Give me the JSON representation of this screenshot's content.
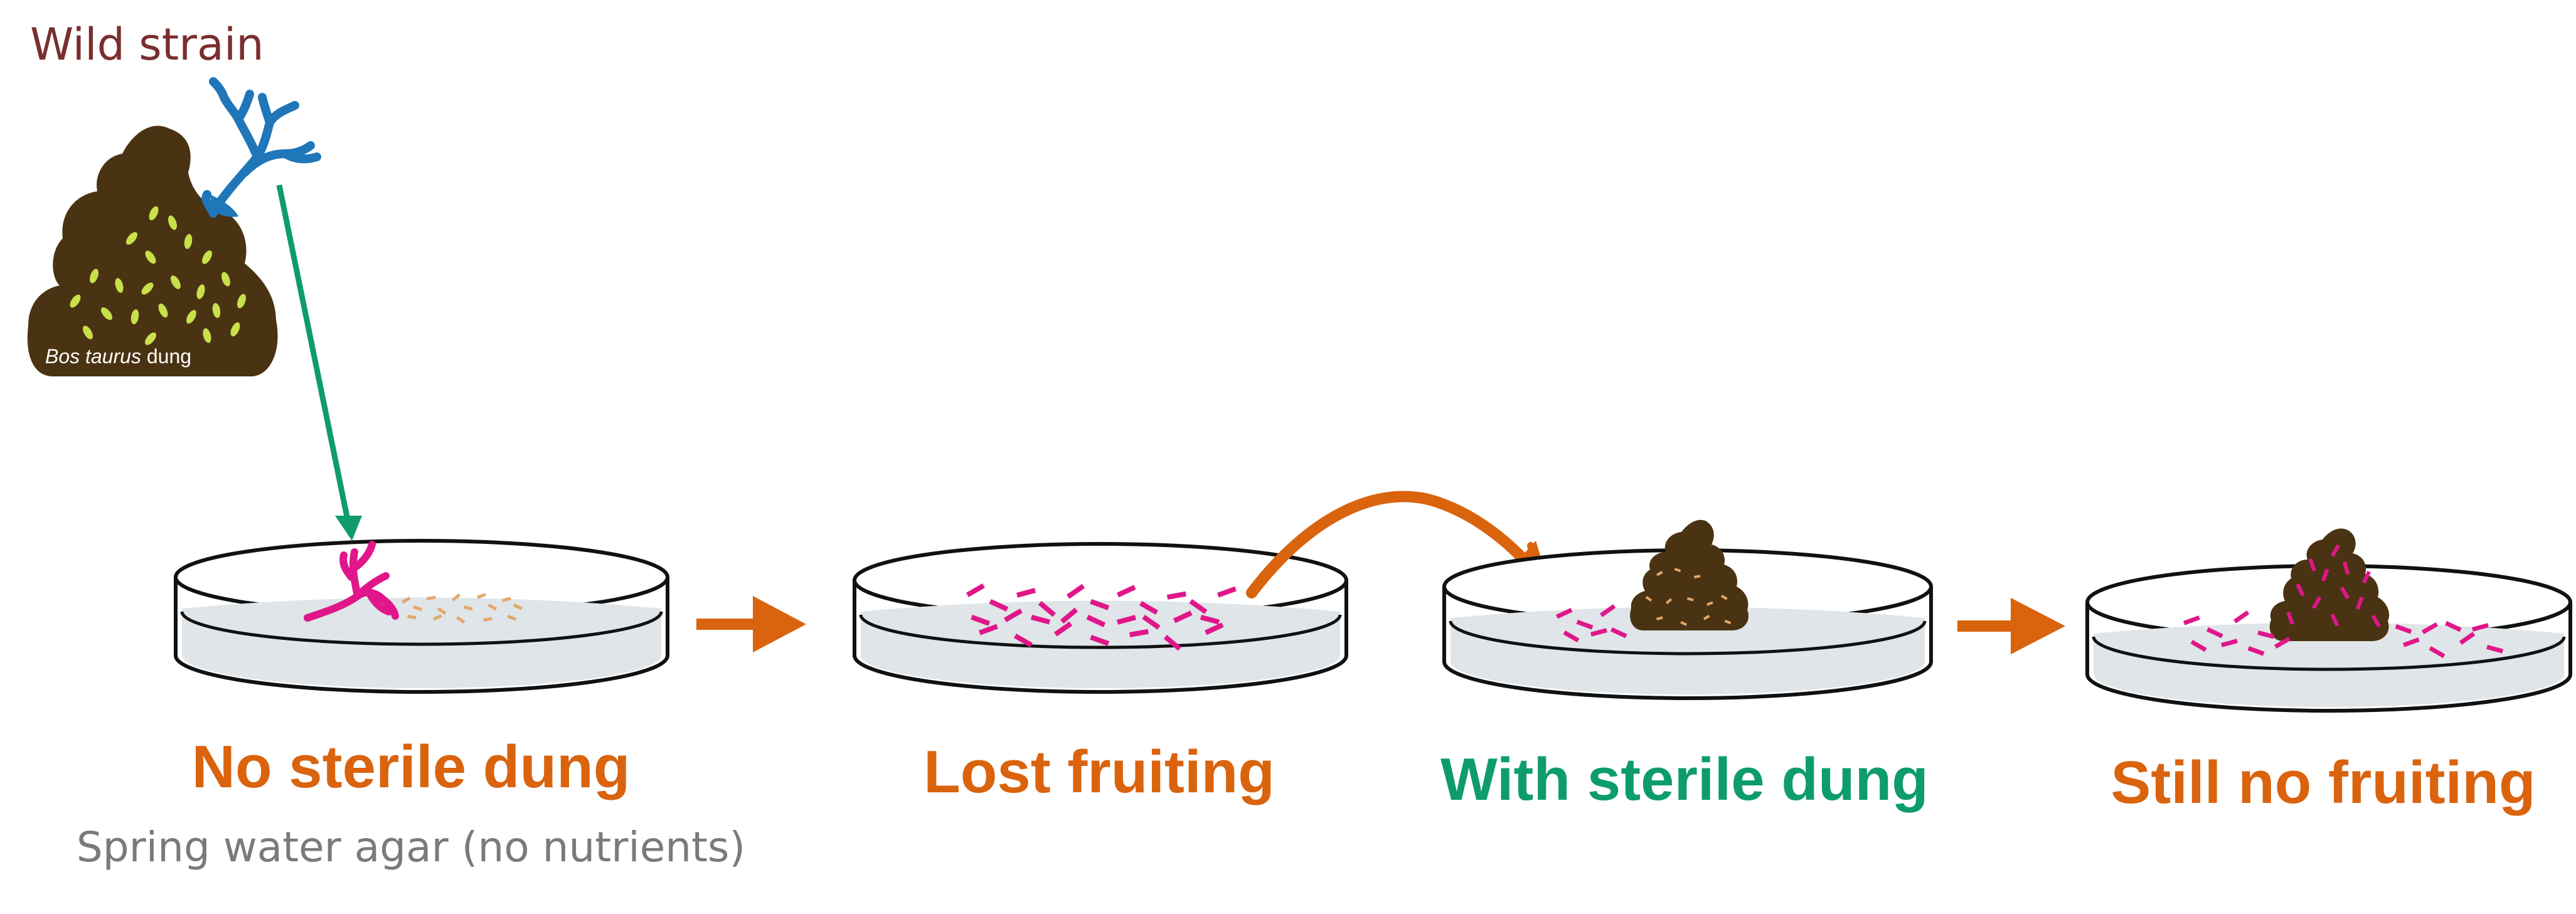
{
  "wild_strain_label": "Wild strain",
  "dung_caption": {
    "species": "Bos taurus",
    "suffix": " dung"
  },
  "stages": [
    {
      "title": "No sterile dung",
      "subtitle": "Spring water agar (no nutrients)",
      "color": "#DA630E"
    },
    {
      "title": "Lost fruiting",
      "color": "#DA630E"
    },
    {
      "title": "With sterile dung",
      "color": "#0E9C6E"
    },
    {
      "title": "Still no fruiting",
      "color": "#DA630E"
    }
  ],
  "colors": {
    "dung": "#4A3312",
    "spores": "#C8E04A",
    "wild_fungus": "#1F76B8",
    "grown_fungus": "#E0168A",
    "faded_spores": "#E3A86C",
    "agar": "#DFE5E8",
    "arrow_orange": "#DA630E",
    "arrow_green": "#0E9C6E",
    "title_maroon": "#7A2E2E"
  },
  "icons": [
    "dung-pile-icon",
    "fungus-icon",
    "petri-dish-icon",
    "arrow-icon"
  ]
}
